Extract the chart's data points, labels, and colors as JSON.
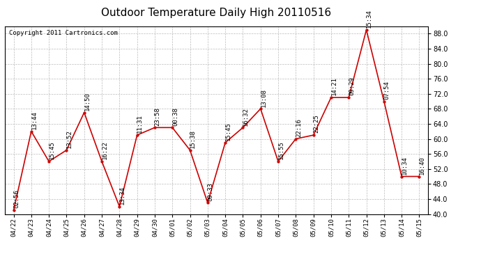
{
  "title": "Outdoor Temperature Daily High 20110516",
  "copyright": "Copyright 2011 Cartronics.com",
  "dates": [
    "04/22",
    "04/23",
    "04/24",
    "04/25",
    "04/26",
    "04/27",
    "04/28",
    "04/29",
    "04/30",
    "05/01",
    "05/02",
    "05/03",
    "05/04",
    "05/05",
    "05/06",
    "05/07",
    "05/08",
    "05/09",
    "05/10",
    "05/11",
    "05/12",
    "05/13",
    "05/14",
    "05/15"
  ],
  "values": [
    41.0,
    62.0,
    54.0,
    57.0,
    67.0,
    54.0,
    42.0,
    61.0,
    63.0,
    63.0,
    57.0,
    43.0,
    59.0,
    63.0,
    68.0,
    54.0,
    60.0,
    61.0,
    71.0,
    71.0,
    89.0,
    70.0,
    50.0,
    50.0
  ],
  "times": [
    "02:56",
    "13:44",
    "15:45",
    "13:52",
    "14:50",
    "16:22",
    "13:34",
    "11:31",
    "23:58",
    "00:38",
    "15:38",
    "09:33",
    "15:45",
    "16:32",
    "13:08",
    "15:55",
    "22:16",
    "22:25",
    "14:21",
    "09:29",
    "15:34",
    "07:54",
    "10:34",
    "16:40"
  ],
  "ylim": [
    40.0,
    90.0
  ],
  "yticks": [
    40.0,
    44.0,
    48.0,
    52.0,
    56.0,
    60.0,
    64.0,
    68.0,
    72.0,
    76.0,
    80.0,
    84.0,
    88.0
  ],
  "line_color": "#cc0000",
  "marker_color": "#cc0000",
  "bg_color": "#ffffff",
  "plot_bg_color": "#ffffff",
  "grid_color": "#bbbbbb",
  "title_fontsize": 11,
  "annotation_fontsize": 6.5,
  "copyright_fontsize": 6.5
}
